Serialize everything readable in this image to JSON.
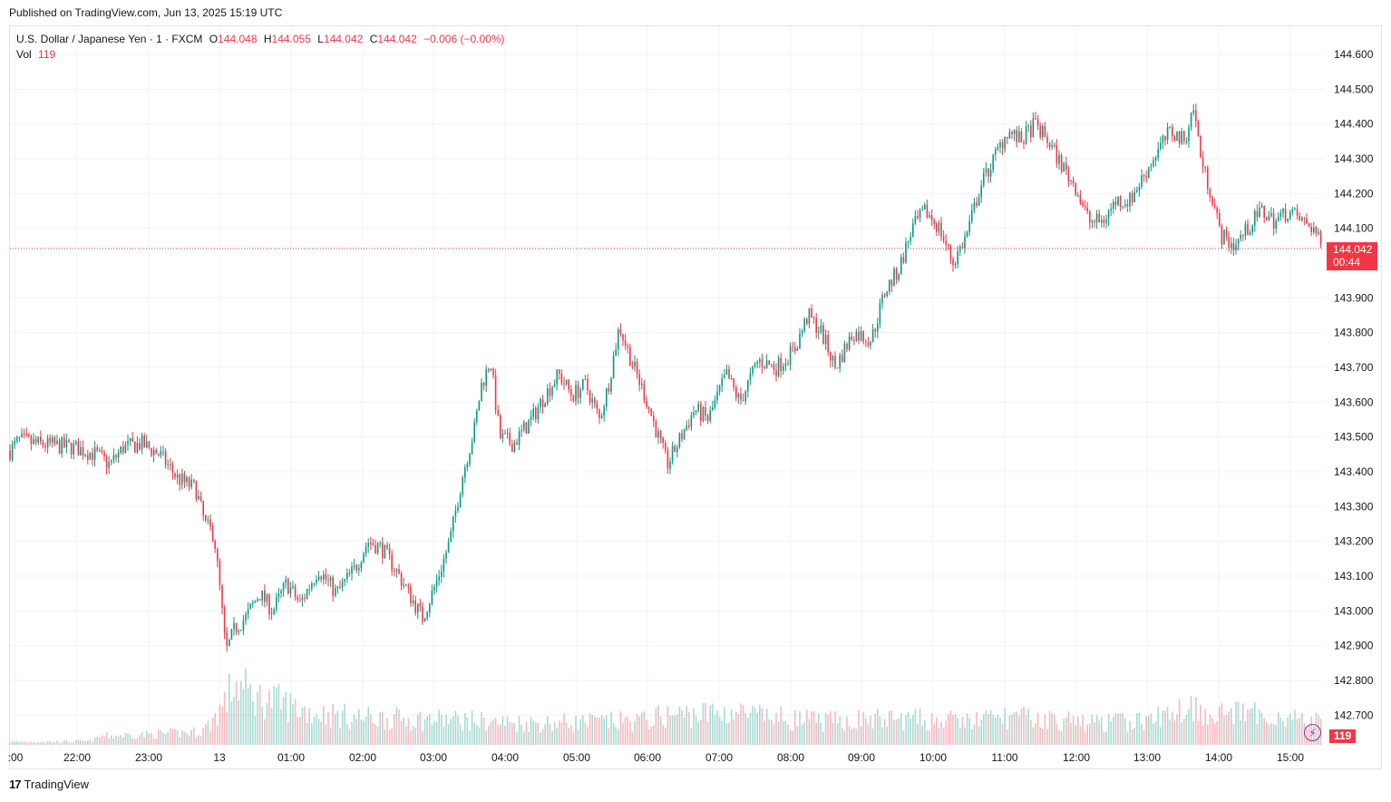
{
  "header": {
    "published": "Published on TradingView.com, Jun 13, 2025 15:19 UTC"
  },
  "legend": {
    "symbol": "U.S. Dollar / Japanese Yen · 1 · FXCM",
    "o_label": "O",
    "o_value": "144.048",
    "h_label": "H",
    "h_value": "144.055",
    "l_label": "L",
    "l_value": "144.042",
    "c_label": "C",
    "c_value": "144.042",
    "change": "−0.006 (−0.00%)",
    "vol_label": "Vol",
    "vol_value": "119"
  },
  "price_tag": {
    "price": "144.042",
    "countdown": "00:44"
  },
  "vol_tag": "119",
  "footer": {
    "logo_text": "TradingView"
  },
  "colors": {
    "up": "#089981",
    "down": "#f23645",
    "grid": "#f0f3fa"
  },
  "chart_data": {
    "type": "candlestick",
    "ylim": [
      142.65,
      144.65
    ],
    "y_ticks": [
      "144.600",
      "144.500",
      "144.400",
      "144.300",
      "144.200",
      "144.100",
      "143.900",
      "143.800",
      "143.700",
      "143.600",
      "143.500",
      "143.400",
      "143.300",
      "143.200",
      "143.100",
      "143.000",
      "142.900",
      "142.800",
      "142.700"
    ],
    "x_ticks": [
      ":00",
      "22:00",
      "23:00",
      "13",
      "01:00",
      "02:00",
      "03:00",
      "04:00",
      "05:00",
      "06:00",
      "07:00",
      "08:00",
      "09:00",
      "10:00",
      "11:00",
      "12:00",
      "13:00",
      "14:00",
      "15:00"
    ],
    "last_price": 144.042,
    "price_path": [
      [
        0,
        143.46
      ],
      [
        10,
        143.49
      ],
      [
        30,
        143.48
      ],
      [
        70,
        143.47
      ],
      [
        95,
        143.45
      ],
      [
        110,
        143.42
      ],
      [
        125,
        143.47
      ],
      [
        145,
        143.48
      ],
      [
        165,
        143.45
      ],
      [
        185,
        143.38
      ],
      [
        205,
        143.35
      ],
      [
        215,
        143.25
      ],
      [
        225,
        143.22
      ],
      [
        232,
        143.05
      ],
      [
        238,
        142.88
      ],
      [
        248,
        142.95
      ],
      [
        260,
        142.98
      ],
      [
        275,
        143.05
      ],
      [
        290,
        143.0
      ],
      [
        305,
        143.08
      ],
      [
        320,
        143.02
      ],
      [
        340,
        143.12
      ],
      [
        360,
        143.05
      ],
      [
        380,
        143.12
      ],
      [
        395,
        143.2
      ],
      [
        410,
        143.18
      ],
      [
        425,
        143.12
      ],
      [
        440,
        143.05
      ],
      [
        455,
        142.98
      ],
      [
        470,
        143.08
      ],
      [
        485,
        143.2
      ],
      [
        500,
        143.4
      ],
      [
        512,
        143.52
      ],
      [
        520,
        143.65
      ],
      [
        530,
        143.72
      ],
      [
        540,
        143.5
      ],
      [
        555,
        143.48
      ],
      [
        575,
        143.55
      ],
      [
        590,
        143.62
      ],
      [
        605,
        143.68
      ],
      [
        620,
        143.62
      ],
      [
        635,
        143.65
      ],
      [
        650,
        143.55
      ],
      [
        660,
        143.65
      ],
      [
        672,
        143.82
      ],
      [
        685,
        143.72
      ],
      [
        700,
        143.62
      ],
      [
        715,
        143.5
      ],
      [
        725,
        143.42
      ],
      [
        740,
        143.5
      ],
      [
        755,
        143.58
      ],
      [
        770,
        143.55
      ],
      [
        790,
        143.68
      ],
      [
        805,
        143.6
      ],
      [
        825,
        143.72
      ],
      [
        845,
        143.7
      ],
      [
        865,
        143.75
      ],
      [
        880,
        143.85
      ],
      [
        895,
        143.8
      ],
      [
        910,
        143.7
      ],
      [
        930,
        143.8
      ],
      [
        950,
        143.78
      ],
      [
        965,
        143.92
      ],
      [
        980,
        143.98
      ],
      [
        995,
        144.1
      ],
      [
        1010,
        144.15
      ],
      [
        1025,
        144.1
      ],
      [
        1040,
        144.0
      ],
      [
        1055,
        144.08
      ],
      [
        1070,
        144.22
      ],
      [
        1085,
        144.3
      ],
      [
        1100,
        144.38
      ],
      [
        1115,
        144.35
      ],
      [
        1130,
        144.4
      ],
      [
        1145,
        144.35
      ],
      [
        1160,
        144.28
      ],
      [
        1175,
        144.22
      ],
      [
        1190,
        144.12
      ],
      [
        1205,
        144.12
      ],
      [
        1220,
        144.18
      ],
      [
        1235,
        144.18
      ],
      [
        1250,
        144.25
      ],
      [
        1265,
        144.32
      ],
      [
        1280,
        144.38
      ],
      [
        1295,
        144.35
      ],
      [
        1305,
        144.45
      ],
      [
        1315,
        144.28
      ],
      [
        1325,
        144.2
      ],
      [
        1335,
        144.08
      ],
      [
        1350,
        144.05
      ],
      [
        1365,
        144.1
      ],
      [
        1380,
        144.15
      ],
      [
        1395,
        144.12
      ],
      [
        1410,
        144.15
      ],
      [
        1425,
        144.12
      ],
      [
        1438,
        144.1
      ],
      [
        1447,
        144.04
      ]
    ],
    "volume_path": [
      [
        0,
        4
      ],
      [
        90,
        5
      ],
      [
        100,
        12
      ],
      [
        150,
        14
      ],
      [
        210,
        18
      ],
      [
        220,
        28
      ],
      [
        238,
        60
      ],
      [
        248,
        85
      ],
      [
        270,
        65
      ],
      [
        300,
        58
      ],
      [
        330,
        45
      ],
      [
        380,
        38
      ],
      [
        450,
        35
      ],
      [
        500,
        34
      ],
      [
        550,
        30
      ],
      [
        600,
        30
      ],
      [
        700,
        33
      ],
      [
        720,
        40
      ],
      [
        800,
        45
      ],
      [
        830,
        38
      ],
      [
        900,
        32
      ],
      [
        950,
        35
      ],
      [
        1000,
        35
      ],
      [
        1050,
        32
      ],
      [
        1100,
        38
      ],
      [
        1200,
        30
      ],
      [
        1260,
        34
      ],
      [
        1300,
        55
      ],
      [
        1320,
        45
      ],
      [
        1360,
        42
      ],
      [
        1400,
        40
      ],
      [
        1447,
        30
      ]
    ],
    "volume_ymax": 100
  }
}
